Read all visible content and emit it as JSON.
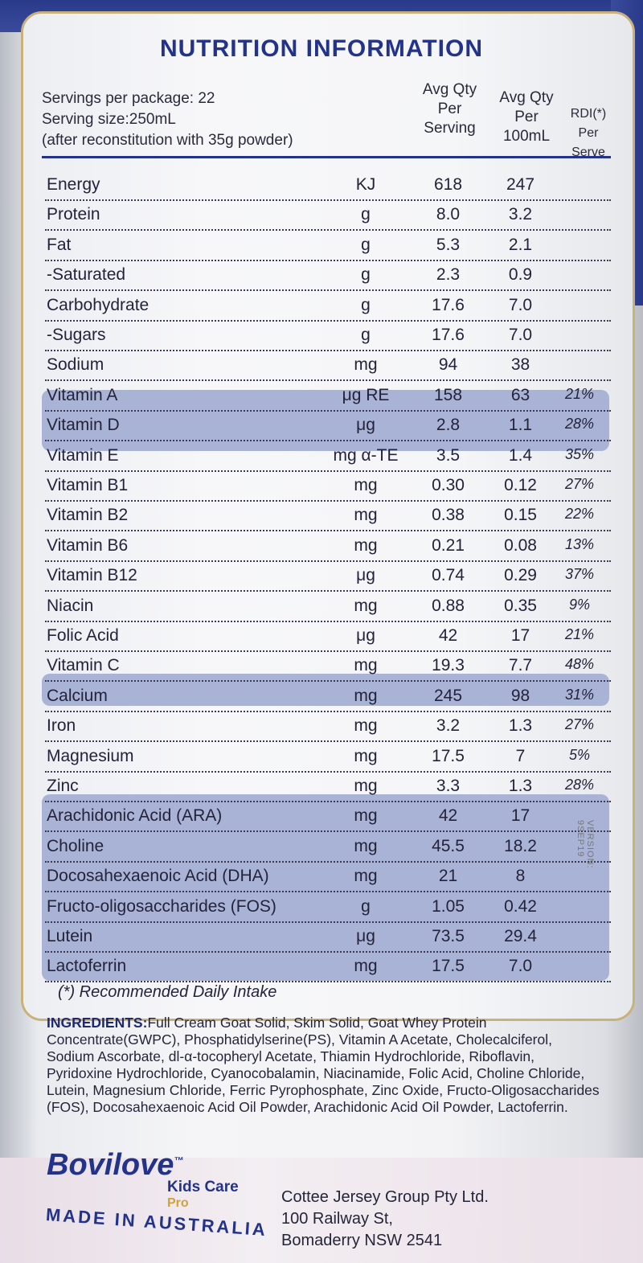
{
  "title": "NUTRITION INFORMATION",
  "servings_per_package": "Servings per package: 22",
  "serving_size": "Serving size:250mL",
  "reconstitution": "(after reconstitution with 35g powder)",
  "headers": {
    "per_serving": [
      "Avg Qty",
      "Per",
      "Serving"
    ],
    "per_100ml": [
      "Avg Qty",
      "Per",
      "100mL"
    ],
    "rdi": [
      "RDI(*)",
      "Per",
      "Serve"
    ]
  },
  "rows": [
    {
      "name": "Energy",
      "unit": "KJ",
      "serving": "618",
      "per100": "247",
      "rdi": ""
    },
    {
      "name": "Protein",
      "unit": "g",
      "serving": "8.0",
      "per100": "3.2",
      "rdi": ""
    },
    {
      "name": "Fat",
      "unit": "g",
      "serving": "5.3",
      "per100": "2.1",
      "rdi": ""
    },
    {
      "name": "-Saturated",
      "unit": "g",
      "serving": "2.3",
      "per100": "0.9",
      "rdi": ""
    },
    {
      "name": "Carbohydrate",
      "unit": "g",
      "serving": "17.6",
      "per100": "7.0",
      "rdi": ""
    },
    {
      "name": "-Sugars",
      "unit": "g",
      "serving": "17.6",
      "per100": "7.0",
      "rdi": ""
    },
    {
      "name": "Sodium",
      "unit": "mg",
      "serving": "94",
      "per100": "38",
      "rdi": ""
    },
    {
      "name": "Vitamin A",
      "unit": "μg RE",
      "serving": "158",
      "per100": "63",
      "rdi": "21%"
    },
    {
      "name": "Vitamin D",
      "unit": "μg",
      "serving": "2.8",
      "per100": "1.1",
      "rdi": "28%"
    },
    {
      "name": "Vitamin E",
      "unit": "mg α-TE",
      "serving": "3.5",
      "per100": "1.4",
      "rdi": "35%"
    },
    {
      "name": "Vitamin B1",
      "unit": "mg",
      "serving": "0.30",
      "per100": "0.12",
      "rdi": "27%"
    },
    {
      "name": "Vitamin B2",
      "unit": "mg",
      "serving": "0.38",
      "per100": "0.15",
      "rdi": "22%"
    },
    {
      "name": "Vitamin B6",
      "unit": "mg",
      "serving": "0.21",
      "per100": "0.08",
      "rdi": "13%"
    },
    {
      "name": "Vitamin B12",
      "unit": "μg",
      "serving": "0.74",
      "per100": "0.29",
      "rdi": "37%"
    },
    {
      "name": "Niacin",
      "unit": "mg",
      "serving": "0.88",
      "per100": "0.35",
      "rdi": "9%"
    },
    {
      "name": "Folic Acid",
      "unit": "μg",
      "serving": "42",
      "per100": "17",
      "rdi": "21%"
    },
    {
      "name": "Vitamin C",
      "unit": "mg",
      "serving": "19.3",
      "per100": "7.7",
      "rdi": "48%"
    },
    {
      "name": "Calcium",
      "unit": "mg",
      "serving": "245",
      "per100": "98",
      "rdi": "31%"
    },
    {
      "name": "Iron",
      "unit": "mg",
      "serving": "3.2",
      "per100": "1.3",
      "rdi": "27%"
    },
    {
      "name": "Magnesium",
      "unit": "mg",
      "serving": "17.5",
      "per100": "7",
      "rdi": "5%"
    },
    {
      "name": "Zinc",
      "unit": "mg",
      "serving": "3.3",
      "per100": "1.3",
      "rdi": "28%"
    },
    {
      "name": "Arachidonic Acid (ARA)",
      "unit": "mg",
      "serving": "42",
      "per100": "17",
      "rdi": ""
    },
    {
      "name": "Choline",
      "unit": "mg",
      "serving": "45.5",
      "per100": "18.2",
      "rdi": ""
    },
    {
      "name": "Docosahexaenoic Acid (DHA)",
      "unit": "mg",
      "serving": "21",
      "per100": "8",
      "rdi": ""
    },
    {
      "name": "Fructo-oligosaccharides (FOS)",
      "unit": "g",
      "serving": "1.05",
      "per100": "0.42",
      "rdi": ""
    },
    {
      "name": "Lutein",
      "unit": "μg",
      "serving": "73.5",
      "per100": "29.4",
      "rdi": ""
    },
    {
      "name": "Lactoferrin",
      "unit": "mg",
      "serving": "17.5",
      "per100": "7.0",
      "rdi": ""
    }
  ],
  "footnote": "(*) Recommended Daily Intake",
  "version": "VERSION: 9SEP19",
  "ingredients_label": "INGREDIENTS:",
  "ingredients_text": "Full Cream Goat Solid, Skim Solid, Goat Whey Protein Concentrate(GWPC), Phosphatidylserine(PS), Vitamin A Acetate, Cholecalciferol, Sodium Ascorbate, dl-α-tocopheryl Acetate, Thiamin Hydrochloride, Riboflavin, Pyridoxine Hydrochloride, Cyanocobalamin, Niacinamide, Folic Acid, Choline Chloride, Lutein, Magnesium Chloride, Ferric Pyrophosphate, Zinc Oxide, Fructo-Oligosaccharides (FOS), Docosahexaenoic Acid Oil Powder, Arachidonic Acid Oil Powder, Lactoferrin.",
  "brand": "Bovilove",
  "trademark": "™",
  "product_line": "Kids Care",
  "product_variant": "Pro",
  "made_in": "MADE IN AUSTRALIA",
  "address": [
    "Cottee Jersey Group Pty Ltd.",
    "100 Railway St,",
    "Bomaderry NSW 2541"
  ],
  "colors": {
    "brand_blue": "#24338a",
    "highlight_band": "#a9b3d6",
    "gold_border": "#c9b27a"
  }
}
